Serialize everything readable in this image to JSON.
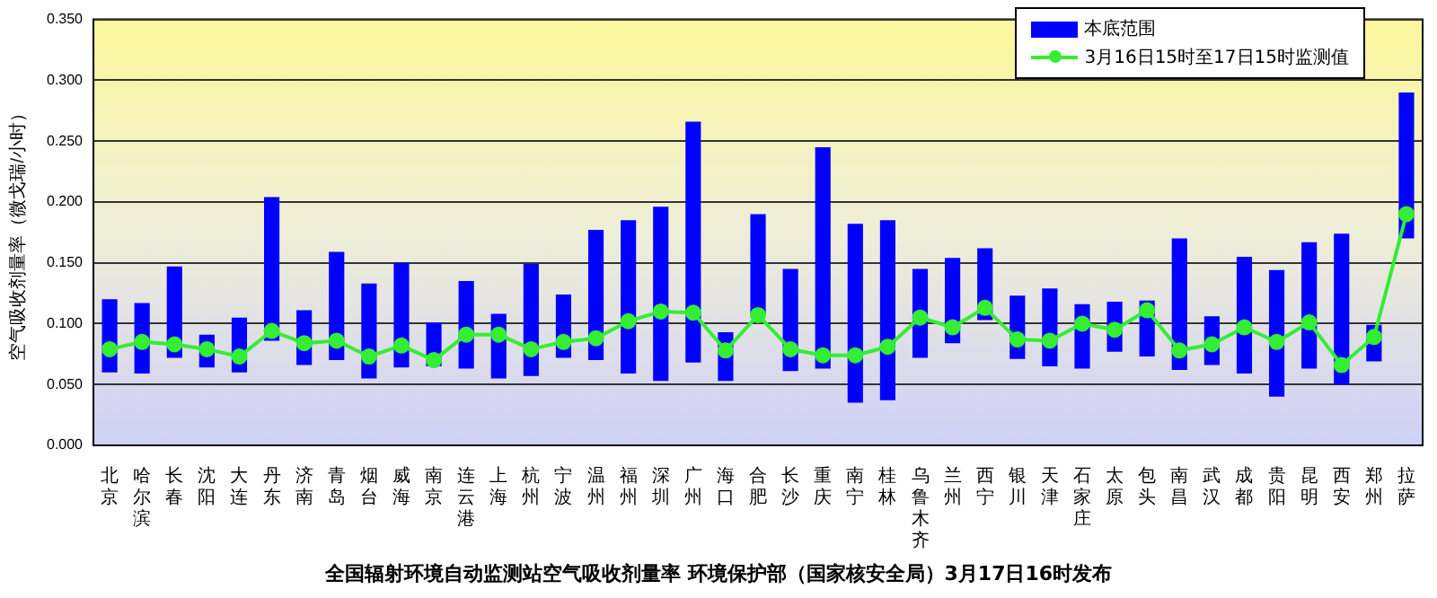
{
  "chart_data": {
    "type": "bar",
    "title": "全国辐射环境自动监测站空气吸收剂量率 环境保护部（国家核安全局）3月17日16时发布",
    "ylabel": "空气吸收剂量率（微戈瑞/小时）",
    "categories": [
      "北京",
      "哈尔滨",
      "长春",
      "沈阳",
      "大连",
      "丹东",
      "济南",
      "青岛",
      "烟台",
      "威海",
      "南京",
      "连云港",
      "上海",
      "杭州",
      "宁波",
      "温州",
      "福州",
      "深圳",
      "广州",
      "海口",
      "合肥",
      "长沙",
      "重庆",
      "南宁",
      "桂林",
      "乌鲁木齐",
      "兰州",
      "西宁",
      "银川",
      "天津",
      "石家庄",
      "太原",
      "包头",
      "南昌",
      "武汉",
      "成都",
      "贵阳",
      "昆明",
      "西安",
      "郑州",
      "拉萨"
    ],
    "series": [
      {
        "name": "本底范围",
        "color": "#0000ff",
        "base": [
          0.06,
          0.059,
          0.072,
          0.064,
          0.06,
          0.086,
          0.066,
          0.07,
          0.055,
          0.064,
          0.065,
          0.063,
          0.055,
          0.057,
          0.072,
          0.07,
          0.059,
          0.053,
          0.068,
          0.053,
          0.108,
          0.061,
          0.063,
          0.035,
          0.037,
          0.072,
          0.084,
          0.103,
          0.071,
          0.065,
          0.063,
          0.077,
          0.073,
          0.062,
          0.066,
          0.059,
          0.04,
          0.063,
          0.05,
          0.069,
          0.17
        ],
        "values": [
          0.06,
          0.058,
          0.075,
          0.027,
          0.045,
          0.118,
          0.045,
          0.089,
          0.078,
          0.086,
          0.036,
          0.072,
          0.053,
          0.092,
          0.052,
          0.107,
          0.126,
          0.143,
          0.198,
          0.04,
          0.082,
          0.084,
          0.182,
          0.147,
          0.148,
          0.073,
          0.07,
          0.059,
          0.052,
          0.064,
          0.053,
          0.041,
          0.046,
          0.108,
          0.04,
          0.096,
          0.104,
          0.104,
          0.124,
          0.03,
          0.12
        ]
      },
      {
        "name": "3月16日15时至17日15时监测值",
        "type": "line",
        "color": "#33ee33",
        "marker": "circle",
        "line_style": "solid",
        "values": [
          0.079,
          0.085,
          0.083,
          0.079,
          0.073,
          0.094,
          0.084,
          0.086,
          0.073,
          0.082,
          0.07,
          0.091,
          0.091,
          0.079,
          0.085,
          0.088,
          0.102,
          0.11,
          0.109,
          0.078,
          0.107,
          0.079,
          0.074,
          0.074,
          0.081,
          0.105,
          0.097,
          0.113,
          0.087,
          0.086,
          0.1,
          0.095,
          0.111,
          0.078,
          0.083,
          0.097,
          0.085,
          0.101,
          0.066,
          0.089,
          0.19
        ]
      }
    ],
    "ylim": [
      0,
      0.35
    ],
    "yticks": [
      {
        "value": 0,
        "label": "0.000"
      },
      {
        "value": 0.05,
        "label": "0.050"
      },
      {
        "value": 0.1,
        "label": "0.100"
      },
      {
        "value": 0.15,
        "label": "0.150"
      },
      {
        "value": 0.2,
        "label": "0.200"
      },
      {
        "value": 0.25,
        "label": "0.250"
      },
      {
        "value": 0.3,
        "label": "0.300"
      },
      {
        "value": 0.35,
        "label": "0.350"
      }
    ],
    "grid": "y",
    "legend": "top right"
  }
}
